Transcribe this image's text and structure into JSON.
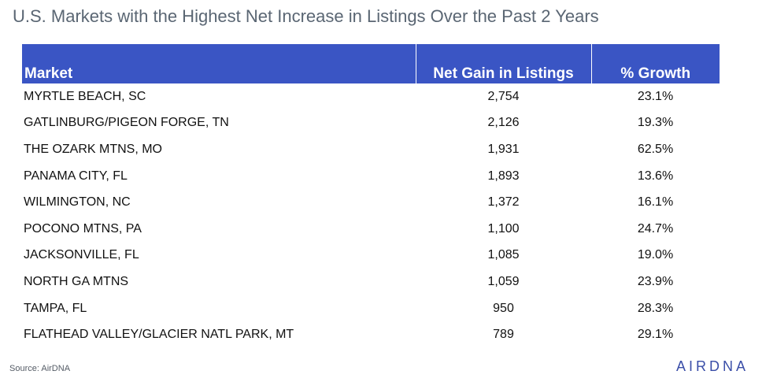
{
  "title": "U.S. Markets with the Highest Net Increase in Listings Over the Past 2 Years",
  "table": {
    "headers": [
      "Market",
      "Net Gain in Listings",
      "% Growth"
    ],
    "rows": [
      [
        "MYRTLE BEACH, SC",
        "2,754",
        "23.1%"
      ],
      [
        "GATLINBURG/PIGEON FORGE, TN",
        "2,126",
        "19.3%"
      ],
      [
        "THE OZARK MTNS, MO",
        "1,931",
        "62.5%"
      ],
      [
        "PANAMA CITY, FL",
        "1,893",
        "13.6%"
      ],
      [
        "WILMINGTON, NC",
        "1,372",
        "16.1%"
      ],
      [
        "POCONO MTNS, PA",
        "1,100",
        "24.7%"
      ],
      [
        "JACKSONVILLE, FL",
        "1,085",
        "19.0%"
      ],
      [
        "NORTH GA MTNS",
        "1,059",
        "23.9%"
      ],
      [
        "TAMPA, FL",
        "950",
        "28.3%"
      ],
      [
        "FLATHEAD VALLEY/GLACIER NATL PARK, MT",
        "789",
        "29.1%"
      ]
    ]
  },
  "source": "Source: AirDNA",
  "logo": "AIRDNA",
  "colors": {
    "header_bg": "#3a55c4",
    "title": "#5a6673",
    "logo": "#3a4ea8"
  }
}
